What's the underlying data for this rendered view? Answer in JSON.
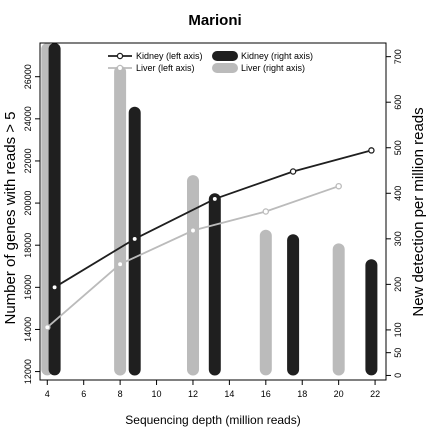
{
  "chart_data": {
    "type": "bar+line",
    "title": "Marioni",
    "xlabel": "Sequencing depth (million reads)",
    "ylabel_left": "Number of genes with reads > 5",
    "ylabel_right": "New detection per million reads",
    "x_ticks": [
      "4",
      "6",
      "8",
      "10",
      "12",
      "14",
      "16",
      "18",
      "20",
      "22"
    ],
    "xlim": [
      3.6,
      22.6
    ],
    "y_left_ticks": [
      "12000",
      "14000",
      "16000",
      "18000",
      "20000",
      "22000",
      "24000",
      "26000"
    ],
    "ylim_left": [
      11600,
      27600
    ],
    "y_right_ticks": [
      "0",
      "50",
      "100",
      "200",
      "300",
      "400",
      "500",
      "600",
      "700"
    ],
    "ylim_right": [
      -10,
      730
    ],
    "legend_position": "top",
    "grid": false,
    "colors": {
      "kidney": "#1f1f1f",
      "liver": "#bbbbbb"
    },
    "legend": [
      {
        "label": "Kidney (left axis)",
        "kind": "line",
        "series": "kidney"
      },
      {
        "label": "Liver (left axis)",
        "kind": "line",
        "series": "liver"
      },
      {
        "label": "Kidney (right axis)",
        "kind": "bar",
        "series": "kidney"
      },
      {
        "label": "Liver (right axis)",
        "kind": "bar",
        "series": "liver"
      }
    ],
    "line_series": [
      {
        "name": "Kidney (left axis)",
        "series": "kidney",
        "x": [
          4.4,
          8.8,
          13.2,
          17.5,
          21.8
        ],
        "y": [
          16000,
          18300,
          20200,
          21500,
          22500
        ]
      },
      {
        "name": "Liver (left axis)",
        "series": "liver",
        "x": [
          4,
          8,
          12,
          16,
          20
        ],
        "y": [
          14100,
          17100,
          18700,
          19600,
          20800
        ]
      }
    ],
    "bar_series": [
      {
        "name": "Kidney (right axis)",
        "series": "kidney",
        "x": [
          4.4,
          8.8,
          13.2,
          17.5,
          21.8
        ],
        "values": [
          730,
          590,
          400,
          310,
          255
        ]
      },
      {
        "name": "Liver (right axis)",
        "series": "liver",
        "x": [
          4,
          8,
          12,
          16,
          20
        ],
        "values": [
          730,
          680,
          440,
          320,
          290
        ]
      }
    ]
  }
}
